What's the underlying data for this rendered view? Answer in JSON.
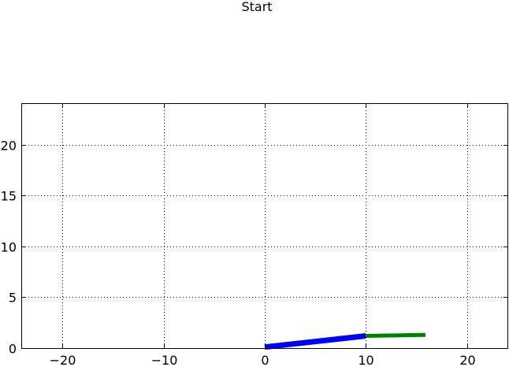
{
  "chart_data": {
    "type": "line",
    "title": "Start",
    "xlabel": "",
    "ylabel": "",
    "xlim": [
      -24,
      24
    ],
    "ylim": [
      0,
      24
    ],
    "xticks": [
      -20,
      -10,
      0,
      10,
      20
    ],
    "xtick_labels": [
      "−20",
      "−10",
      "0",
      "10",
      "20"
    ],
    "yticks": [
      0,
      5,
      10,
      15,
      20
    ],
    "ytick_labels": [
      "0",
      "5",
      "10",
      "15",
      "20"
    ],
    "grid": true,
    "series": [
      {
        "color": "#0000ff",
        "x": [
          0,
          10
        ],
        "y": [
          0.1,
          1.2
        ]
      },
      {
        "color": "#008000",
        "x": [
          10,
          15.9
        ],
        "y": [
          1.2,
          1.3
        ]
      }
    ]
  }
}
